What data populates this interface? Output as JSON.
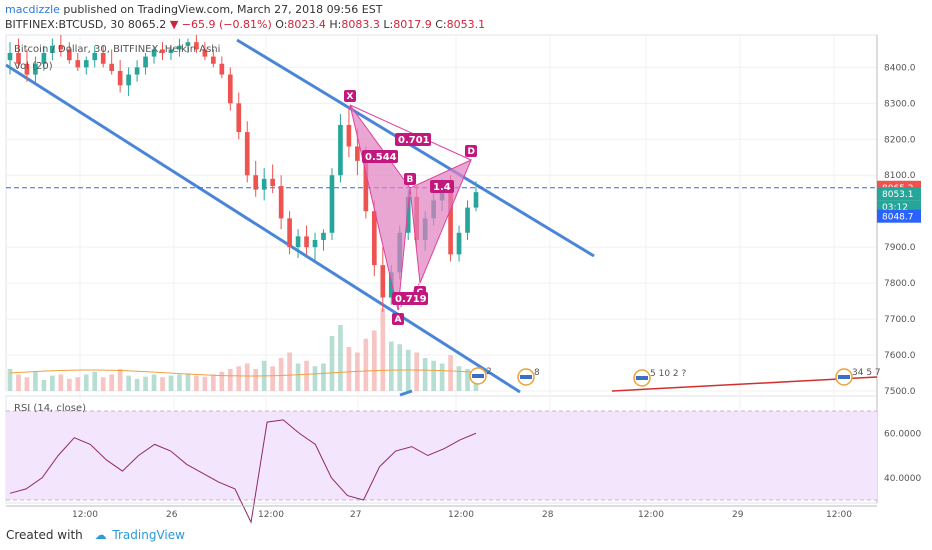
{
  "header": {
    "author": "macdizzle",
    "published_text": "published on TradingView.com, March 27, 2018 09:56 EST",
    "symbol": "BITFINEX:BTCUSD, 30",
    "last": "8065.2",
    "change": "−65.9 (−0.81%)",
    "o_label": "O:",
    "o": "8023.4",
    "h_label": "H:",
    "h": "8083.3",
    "l_label": "L:",
    "l": "8017.9",
    "c_label": "C:",
    "c": "8053.1"
  },
  "legend": {
    "series": "Bitcoin / Dollar, 30, BITFINEX, Heikin Ashi",
    "volume": "Vol (20)",
    "rsi": "RSI (14, close)"
  },
  "price_axis": {
    "ticks": [
      "8400.0",
      "8300.0",
      "8200.0",
      "8100.0",
      "7900.0",
      "7800.0",
      "7700.0",
      "7600.0",
      "7500.0"
    ],
    "tags": [
      {
        "text": "8065.2",
        "bg": "#ef5350"
      },
      {
        "text": "8053.1",
        "bg": "#26a69a"
      },
      {
        "text": "03:12",
        "bg": "#26a69a"
      },
      {
        "text": "8048.7",
        "bg": "#2962ff"
      }
    ]
  },
  "rsi_axis": {
    "ticks": [
      "60.0000",
      "40.0000"
    ]
  },
  "time_axis": {
    "ticks": [
      "12:00",
      "26",
      "12:00",
      "27",
      "12:00",
      "28",
      "12:00",
      "29",
      "12:00"
    ]
  },
  "pattern": {
    "points": [
      "X",
      "A",
      "B",
      "C",
      "D"
    ],
    "ratios": [
      "0.701",
      "0.544",
      "1.4",
      "0.719"
    ]
  },
  "events": [
    {
      "label": "2"
    },
    {
      "label": "8"
    },
    {
      "label": "5 10 2 ?"
    },
    {
      "label": "34 5 7"
    }
  ],
  "footer": {
    "created": "Created with",
    "brand": "TradingView"
  },
  "colors": {
    "up": "#26a69a",
    "down": "#ef5350",
    "channel": "#4a86d8",
    "pattern": "#e040a0",
    "pattern_fill": "#e080c0",
    "rsi_line": "#8e2a6a",
    "rsi_band": "#f3e5fb",
    "last_price_line": "#2962ff",
    "trend": "#d32f2f"
  },
  "chart_data": {
    "type": "candlestick",
    "title": "Bitcoin / Dollar, 30, BITFINEX, Heikin Ashi",
    "ylim": [
      7500,
      8490
    ],
    "candles_ohlc": [
      [
        8420,
        8470,
        8380,
        8440
      ],
      [
        8440,
        8480,
        8400,
        8410
      ],
      [
        8410,
        8450,
        8360,
        8380
      ],
      [
        8380,
        8430,
        8350,
        8410
      ],
      [
        8410,
        8460,
        8390,
        8440
      ],
      [
        8440,
        8480,
        8420,
        8460
      ],
      [
        8460,
        8490,
        8430,
        8450
      ],
      [
        8450,
        8470,
        8410,
        8420
      ],
      [
        8420,
        8440,
        8390,
        8400
      ],
      [
        8400,
        8430,
        8380,
        8420
      ],
      [
        8420,
        8460,
        8400,
        8440
      ],
      [
        8440,
        8460,
        8400,
        8410
      ],
      [
        8410,
        8450,
        8380,
        8390
      ],
      [
        8390,
        8420,
        8330,
        8350
      ],
      [
        8350,
        8400,
        8320,
        8380
      ],
      [
        8380,
        8420,
        8360,
        8400
      ],
      [
        8400,
        8440,
        8380,
        8430
      ],
      [
        8430,
        8460,
        8410,
        8450
      ],
      [
        8450,
        8470,
        8420,
        8440
      ],
      [
        8440,
        8460,
        8420,
        8450
      ],
      [
        8450,
        8480,
        8430,
        8460
      ],
      [
        8460,
        8480,
        8440,
        8470
      ],
      [
        8470,
        8490,
        8440,
        8450
      ],
      [
        8450,
        8470,
        8420,
        8430
      ],
      [
        8430,
        8450,
        8400,
        8410
      ],
      [
        8410,
        8430,
        8370,
        8380
      ],
      [
        8380,
        8400,
        8280,
        8300
      ],
      [
        8300,
        8330,
        8200,
        8220
      ],
      [
        8220,
        8250,
        8080,
        8100
      ],
      [
        8100,
        8140,
        8040,
        8060
      ],
      [
        8060,
        8120,
        8030,
        8090
      ],
      [
        8090,
        8130,
        8050,
        8070
      ],
      [
        8070,
        8100,
        7950,
        7980
      ],
      [
        7980,
        8000,
        7880,
        7900
      ],
      [
        7900,
        7950,
        7870,
        7930
      ],
      [
        7930,
        7960,
        7880,
        7900
      ],
      [
        7900,
        7940,
        7860,
        7920
      ],
      [
        7920,
        7950,
        7890,
        7940
      ],
      [
        7940,
        8120,
        7920,
        8100
      ],
      [
        8100,
        8270,
        8080,
        8240
      ],
      [
        8240,
        8290,
        8150,
        8180
      ],
      [
        8180,
        8230,
        8100,
        8140
      ],
      [
        8140,
        8180,
        7980,
        8000
      ],
      [
        8000,
        8030,
        7820,
        7850
      ],
      [
        7850,
        7900,
        7720,
        7760
      ],
      [
        7760,
        7850,
        7740,
        7830
      ],
      [
        7830,
        7960,
        7810,
        7940
      ],
      [
        7940,
        8060,
        7920,
        8040
      ],
      [
        8040,
        8070,
        7900,
        7920
      ],
      [
        7920,
        8000,
        7890,
        7980
      ],
      [
        7980,
        8050,
        7960,
        8030
      ],
      [
        8030,
        8090,
        8000,
        8060
      ],
      [
        8060,
        8100,
        7860,
        7880
      ],
      [
        7880,
        7960,
        7860,
        7940
      ],
      [
        7940,
        8030,
        7920,
        8010
      ],
      [
        8010,
        8083,
        8000,
        8053
      ]
    ],
    "volume": [
      40,
      30,
      25,
      35,
      20,
      28,
      30,
      22,
      25,
      30,
      35,
      25,
      30,
      40,
      28,
      22,
      26,
      30,
      25,
      28,
      30,
      32,
      28,
      26,
      30,
      35,
      40,
      45,
      50,
      40,
      55,
      45,
      60,
      70,
      50,
      55,
      45,
      50,
      100,
      120,
      80,
      70,
      95,
      110,
      150,
      90,
      85,
      75,
      70,
      60,
      55,
      50,
      65,
      45,
      40,
      38
    ],
    "rsi": {
      "ylim": [
        30,
        70
      ],
      "values": [
        33,
        35,
        40,
        50,
        58,
        55,
        48,
        43,
        50,
        55,
        52,
        46,
        42,
        38,
        35,
        20,
        65,
        66,
        60,
        55,
        40,
        32,
        30,
        45,
        52,
        54,
        50,
        53,
        57,
        60
      ]
    }
  }
}
